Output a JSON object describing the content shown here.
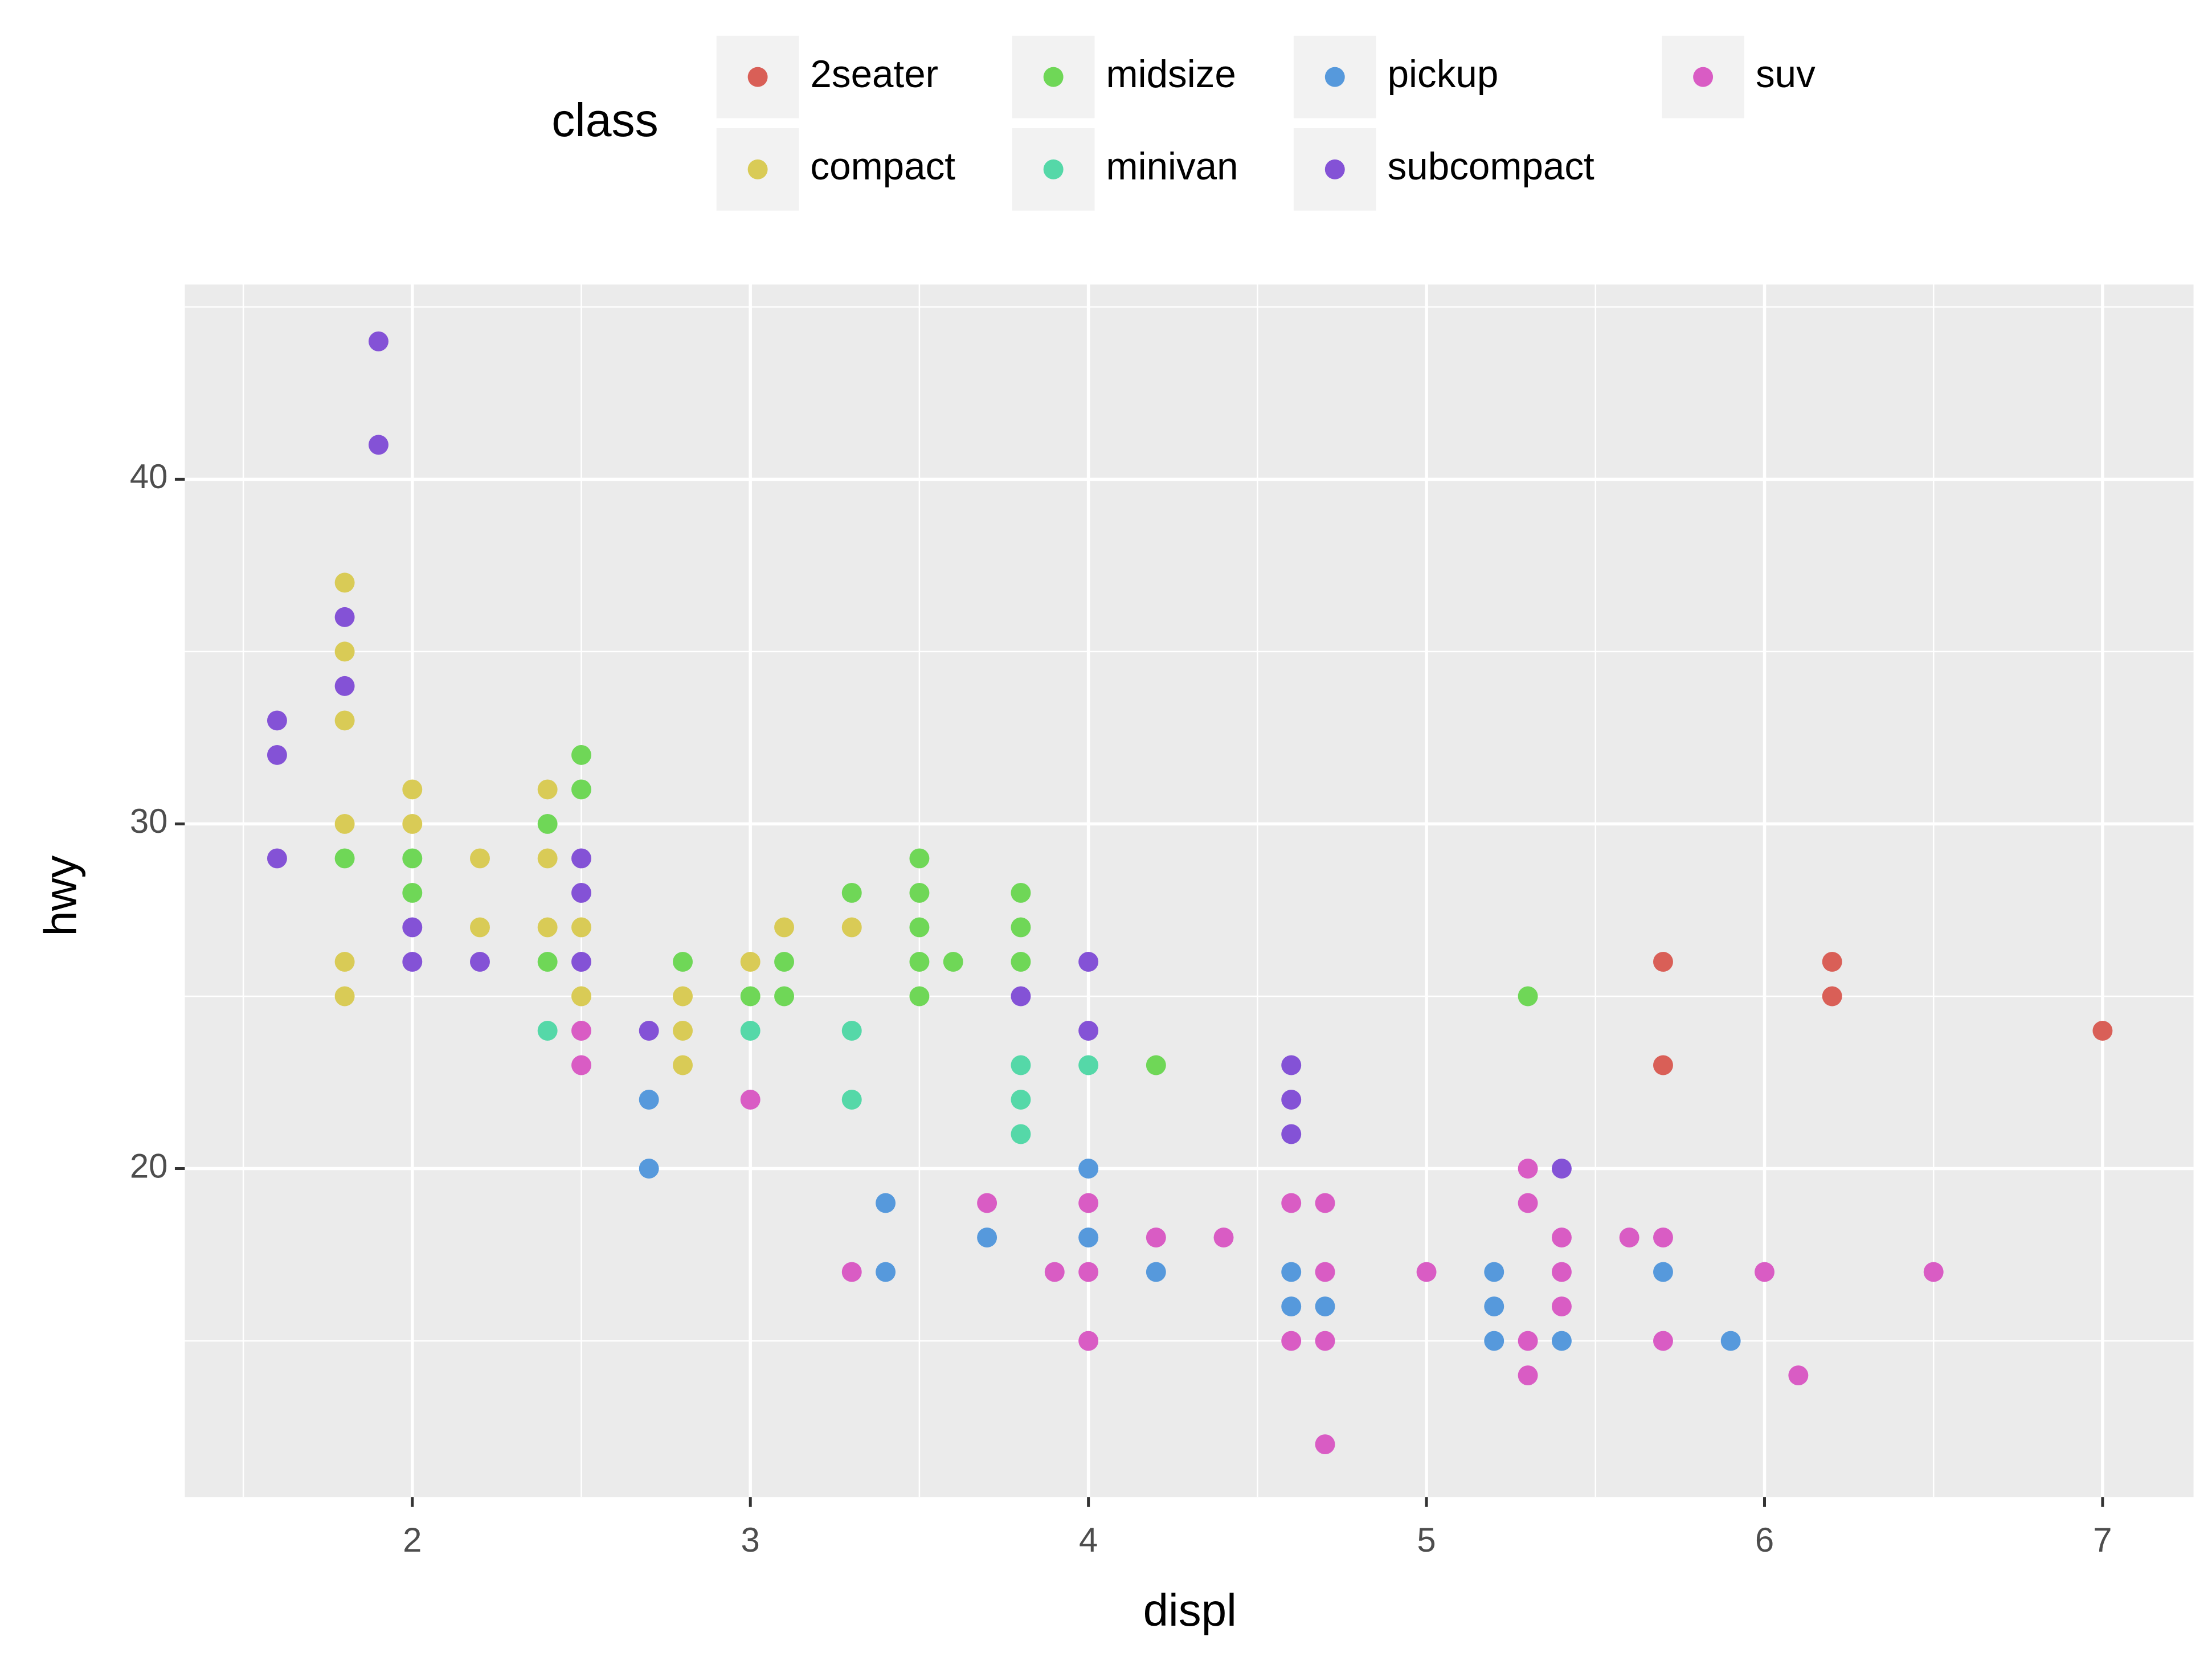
{
  "chart_data": {
    "type": "scatter",
    "x_label": "displ",
    "y_label": "hwy",
    "legend_title": "class",
    "xlim": [
      1.327,
      7.269
    ],
    "ylim": [
      10.47,
      45.65
    ],
    "xticks": [
      2,
      3,
      4,
      5,
      6,
      7
    ],
    "yticks": [
      20,
      30,
      40
    ],
    "minor_xticks": [
      1.5,
      2.5,
      3.5,
      4.5,
      5.5,
      6.5
    ],
    "minor_yticks": [
      15,
      25,
      35,
      45
    ],
    "grid": true,
    "legend": "top",
    "series": [
      {
        "name": "2seater",
        "color": "#d95f57",
        "x": [
          5.7,
          5.7,
          6.2,
          6.2,
          7.0
        ],
        "values": [
          26,
          23,
          26,
          25,
          24
        ]
      },
      {
        "name": "compact",
        "color": "#d9cb56",
        "x": [
          1.8,
          1.8,
          1.8,
          1.8,
          1.8,
          1.8,
          2.0,
          2.0,
          2.2,
          2.2,
          2.4,
          2.4,
          2.4,
          2.5,
          2.5,
          2.8,
          2.8,
          2.8,
          3.0,
          3.1,
          3.3
        ],
        "values": [
          37,
          35,
          33,
          30,
          26,
          25,
          31,
          30,
          29,
          27,
          31,
          29,
          27,
          27,
          25,
          25,
          24,
          23,
          26,
          27,
          27
        ]
      },
      {
        "name": "midsize",
        "color": "#6fd757",
        "x": [
          1.8,
          2.0,
          2.0,
          2.4,
          2.4,
          2.5,
          2.5,
          2.8,
          3.0,
          3.1,
          3.1,
          3.3,
          3.5,
          3.5,
          3.5,
          3.5,
          3.5,
          3.6,
          3.8,
          3.8,
          3.8,
          4.2,
          5.3
        ],
        "values": [
          29,
          29,
          28,
          30,
          26,
          32,
          31,
          26,
          25,
          26,
          25,
          28,
          29,
          28,
          27,
          26,
          25,
          26,
          28,
          27,
          26,
          23,
          25
        ]
      },
      {
        "name": "minivan",
        "color": "#55d8a8",
        "x": [
          2.4,
          3.0,
          3.3,
          3.3,
          3.8,
          3.8,
          3.8,
          4.0
        ],
        "values": [
          24,
          24,
          24,
          22,
          23,
          22,
          21,
          23
        ]
      },
      {
        "name": "pickup",
        "color": "#5699dc",
        "x": [
          2.7,
          2.7,
          3.4,
          3.4,
          3.7,
          4.0,
          4.0,
          4.2,
          4.6,
          4.6,
          4.7,
          5.2,
          5.2,
          5.2,
          5.4,
          5.7,
          5.9
        ],
        "values": [
          22,
          20,
          19,
          17,
          18,
          20,
          18,
          17,
          17,
          16,
          16,
          17,
          16,
          15,
          15,
          17,
          15
        ]
      },
      {
        "name": "subcompact",
        "color": "#8452d6",
        "x": [
          1.6,
          1.6,
          1.6,
          1.8,
          1.8,
          1.9,
          1.9,
          2.0,
          2.0,
          2.2,
          2.5,
          2.5,
          2.5,
          2.7,
          3.8,
          4.0,
          4.0,
          4.6,
          4.6,
          4.6,
          5.4
        ],
        "values": [
          33,
          32,
          29,
          36,
          34,
          44,
          41,
          27,
          26,
          26,
          29,
          28,
          26,
          24,
          25,
          26,
          24,
          23,
          22,
          21,
          20
        ]
      },
      {
        "name": "suv",
        "color": "#d95cc4",
        "x": [
          2.5,
          2.5,
          3.0,
          3.3,
          3.7,
          3.9,
          4.0,
          4.0,
          4.0,
          4.2,
          4.4,
          4.6,
          4.6,
          4.7,
          4.7,
          4.7,
          4.7,
          5.0,
          5.3,
          5.3,
          5.3,
          5.3,
          5.4,
          5.4,
          5.4,
          5.6,
          5.7,
          5.7,
          6.0,
          6.1,
          6.5
        ],
        "values": [
          24,
          23,
          22,
          17,
          19,
          17,
          19,
          17,
          15,
          18,
          18,
          19,
          15,
          19,
          17,
          15,
          12,
          17,
          20,
          19,
          15,
          14,
          18,
          17,
          16,
          18,
          18,
          15,
          17,
          14,
          17
        ]
      }
    ]
  }
}
